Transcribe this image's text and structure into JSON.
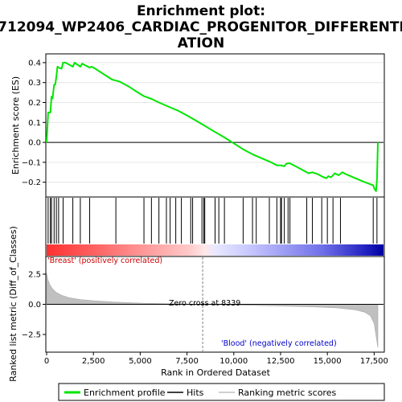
{
  "title_line1": "Enrichment plot:",
  "title_line2": "712094_WP2406_CARDIAC_PROGENITOR_DIFFERENTI",
  "title_line3": "ATION",
  "colors": {
    "es_line": "#00e600",
    "hits": "#000000",
    "positive": "#ff0000",
    "negative": "#0000cc",
    "metric_fill": "#c0c0c0",
    "zero_line": "#000000"
  },
  "chart_data": [
    {
      "type": "line",
      "panel": "enrichment",
      "ylabel": "Enrichment score (ES)",
      "ylim": [
        -0.27,
        0.44
      ],
      "yticks": [
        -0.2,
        -0.1,
        0.0,
        0.1,
        0.2,
        0.3,
        0.4
      ],
      "ytick_labels": [
        "−0.2",
        "−0.1",
        "0.0",
        "0.1",
        "0.2",
        "0.3",
        "0.4"
      ],
      "xlim": [
        0,
        18000
      ],
      "series": [
        {
          "name": "Enrichment profile",
          "x": [
            0,
            80,
            120,
            200,
            260,
            320,
            400,
            460,
            520,
            580,
            640,
            800,
            880,
            1000,
            1200,
            1400,
            1500,
            1650,
            1800,
            1900,
            2100,
            2300,
            2400,
            2600,
            3000,
            3500,
            3700,
            3900,
            4400,
            4800,
            5200,
            5600,
            6000,
            6500,
            7000,
            7500,
            8000,
            8500,
            9000,
            9500,
            10000,
            10500,
            11000,
            11500,
            12000,
            12300,
            12500,
            12700,
            12800,
            12900,
            13000,
            13500,
            14000,
            14200,
            14500,
            14800,
            14950,
            15050,
            15200,
            15300,
            15400,
            15600,
            15800,
            16000,
            16500,
            17000,
            17450,
            17500,
            17600,
            17650,
            17700
          ],
          "y": [
            0.0,
            0.15,
            0.15,
            0.15,
            0.23,
            0.22,
            0.29,
            0.29,
            0.33,
            0.38,
            0.375,
            0.37,
            0.4,
            0.4,
            0.39,
            0.38,
            0.4,
            0.39,
            0.38,
            0.395,
            0.385,
            0.375,
            0.38,
            0.37,
            0.345,
            0.315,
            0.31,
            0.305,
            0.28,
            0.255,
            0.232,
            0.218,
            0.2,
            0.18,
            0.16,
            0.135,
            0.108,
            0.08,
            0.052,
            0.025,
            -0.005,
            -0.035,
            -0.06,
            -0.08,
            -0.1,
            -0.115,
            -0.115,
            -0.12,
            -0.108,
            -0.105,
            -0.105,
            -0.13,
            -0.155,
            -0.15,
            -0.16,
            -0.175,
            -0.18,
            -0.17,
            -0.175,
            -0.165,
            -0.155,
            -0.165,
            -0.15,
            -0.16,
            -0.18,
            -0.2,
            -0.215,
            -0.23,
            -0.245,
            -0.185,
            0.0
          ]
        }
      ]
    },
    {
      "type": "bar",
      "panel": "hits",
      "hit_positions": [
        80,
        200,
        260,
        400,
        520,
        640,
        880,
        1400,
        1800,
        2300,
        3700,
        5200,
        5600,
        6000,
        6400,
        6600,
        6900,
        7200,
        7700,
        7800,
        8300,
        8400,
        8450,
        9000,
        9200,
        9500,
        10500,
        11000,
        11200,
        11900,
        12300,
        12500,
        12550,
        12700,
        12900,
        13000,
        13900,
        14200,
        14700,
        15000,
        15300,
        15700,
        17450,
        17650
      ]
    },
    {
      "type": "area",
      "panel": "ranked_list_metric",
      "ylabel": "Ranked list metric (Diff_of_Classes)",
      "xlabel": "Rank in Ordered Dataset",
      "ylim": [
        -3.9,
        3.9
      ],
      "yticks": [
        -2.5,
        0.0,
        2.5
      ],
      "ytick_labels": [
        "−2.5",
        "0.0",
        "2.5"
      ],
      "xlim": [
        0,
        18000
      ],
      "xticks": [
        0,
        2500,
        5000,
        7500,
        10000,
        12500,
        15000,
        17500
      ],
      "xtick_labels": [
        "0",
        "2,500",
        "5,000",
        "7,500",
        "10,000",
        "12,500",
        "15,000",
        "17,500"
      ],
      "x": [
        0,
        50,
        150,
        300,
        500,
        800,
        1200,
        1800,
        2500,
        3500,
        5000,
        6500,
        8339,
        10000,
        12000,
        14000,
        15500,
        16500,
        17000,
        17300,
        17500,
        17600,
        17700
      ],
      "y": [
        2.6,
        2.1,
        1.7,
        1.3,
        1.0,
        0.75,
        0.55,
        0.4,
        0.3,
        0.2,
        0.1,
        0.05,
        0.0,
        -0.05,
        -0.12,
        -0.2,
        -0.3,
        -0.45,
        -0.65,
        -0.95,
        -1.6,
        -2.6,
        -3.6
      ],
      "zero_cross_label": "Zero cross at 8339",
      "positive_label": "'Breast' (positively correlated)",
      "negative_label": "'Blood' (negatively correlated)"
    }
  ],
  "legend": {
    "items": [
      {
        "label": "Enrichment profile",
        "color": "#00e600",
        "kind": "thick-line"
      },
      {
        "label": "Hits",
        "color": "#000000",
        "kind": "line"
      },
      {
        "label": "Ranking metric scores",
        "color": "#c0c0c0",
        "kind": "line"
      }
    ]
  }
}
